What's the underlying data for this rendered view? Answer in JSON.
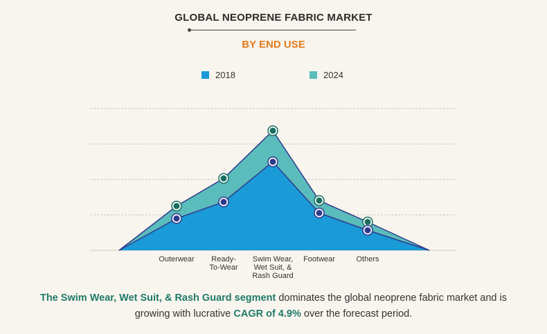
{
  "header": {
    "title": "GLOBAL NEOPRENE FABRIC MARKET",
    "subtitle": "BY END USE"
  },
  "colors": {
    "series_2018": "#1a9ad6",
    "series_2024": "#5bbcbc",
    "line": "#2e3b8c",
    "marker_2024": "#1a6e5f",
    "accent": "#e07a1f"
  },
  "chart_data": {
    "type": "area",
    "categories": [
      "Outerwear",
      "Ready-\nTo-Wear",
      "Swim Wear,\nWet Suit, &\nRash Guard",
      "Footwear",
      "Others"
    ],
    "series": [
      {
        "name": "2018",
        "values": [
          46,
          70,
          128,
          54,
          29
        ]
      },
      {
        "name": "2024",
        "values": [
          64,
          104,
          173,
          72,
          41
        ]
      }
    ],
    "ylim": [
      0,
      205
    ],
    "grid": true,
    "legend_position": "top"
  },
  "footer": {
    "segment": "The Swim Wear, Wet Suit, & Rash Guard segment",
    "text1": " dominates the global neoprene fabric market and is growing with lucrative ",
    "cagr": "CAGR of 4.9%",
    "text2": " over the forecast period."
  }
}
